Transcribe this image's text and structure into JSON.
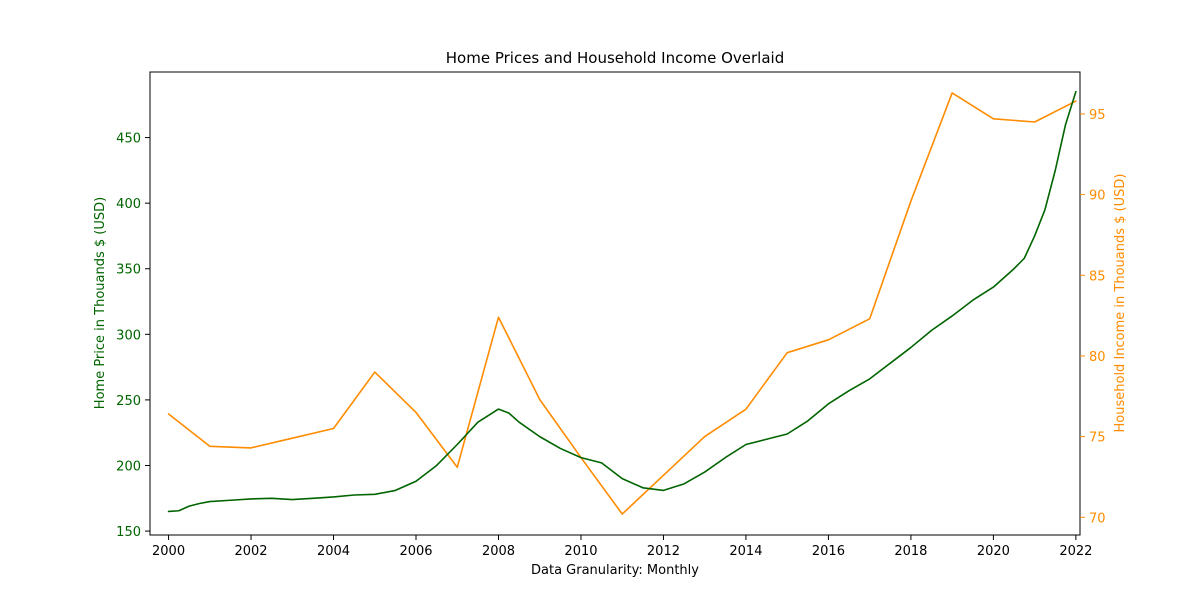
{
  "chart_data": {
    "type": "line",
    "title": "Home Prices and Household Income Overlaid",
    "xlabel": "Data Granularity: Monthly",
    "ylabel_left": "Home Price in Thouands $ (USD)",
    "ylabel_right": "Household Income in Thouands $ (USD)",
    "x_ticks": [
      "2000",
      "2002",
      "2004",
      "2006",
      "2008",
      "2010",
      "2012",
      "2014",
      "2016",
      "2018",
      "2020",
      "2022"
    ],
    "y_left_ticks": [
      "150",
      "200",
      "250",
      "300",
      "350",
      "400",
      "450"
    ],
    "y_right_ticks": [
      "70",
      "75",
      "80",
      "85",
      "90",
      "95"
    ],
    "xlim": [
      1999.55,
      2022.1
    ],
    "ylim_left": [
      147,
      500
    ],
    "ylim_right": [
      68.9,
      97.6
    ],
    "grid": false,
    "legend": false,
    "colors": {
      "home_price": "#006400",
      "income": "#ff8c00",
      "axis": "#000000"
    },
    "series": [
      {
        "key": "home_price",
        "axis": "left",
        "x": [
          2000.0,
          2000.25,
          2000.5,
          2000.75,
          2001.0,
          2001.5,
          2002.0,
          2002.5,
          2003.0,
          2003.5,
          2004.0,
          2004.5,
          2005.0,
          2005.5,
          2006.0,
          2006.5,
          2007.0,
          2007.5,
          2008.0,
          2008.25,
          2008.5,
          2009.0,
          2009.5,
          2010.0,
          2010.5,
          2011.0,
          2011.5,
          2012.0,
          2012.5,
          2013.0,
          2013.5,
          2014.0,
          2014.5,
          2015.0,
          2015.5,
          2016.0,
          2016.5,
          2017.0,
          2017.5,
          2018.0,
          2018.5,
          2019.0,
          2019.5,
          2020.0,
          2020.5,
          2020.75,
          2021.0,
          2021.25,
          2021.5,
          2021.75,
          2022.0
        ],
        "values": [
          165,
          165.5,
          169,
          171,
          172.5,
          173.5,
          174.5,
          175,
          174,
          175,
          176,
          177.5,
          178,
          181,
          188,
          200,
          216,
          233,
          243,
          240,
          233,
          222,
          213,
          206,
          202,
          190,
          183,
          181,
          186,
          195,
          206,
          216,
          220,
          224,
          234,
          247,
          257,
          266,
          278,
          290,
          303,
          314,
          326,
          336,
          350,
          358,
          375,
          395,
          425,
          460,
          485
        ]
      },
      {
        "key": "income",
        "axis": "right",
        "x": [
          2000,
          2001,
          2002,
          2003,
          2004,
          2005,
          2006,
          2007,
          2008,
          2009,
          2010,
          2011,
          2012,
          2013,
          2014,
          2015,
          2016,
          2017,
          2018,
          2019,
          2020,
          2021,
          2022
        ],
        "values": [
          76.4,
          74.4,
          74.3,
          74.9,
          75.5,
          79.0,
          76.5,
          73.1,
          82.4,
          77.3,
          73.7,
          70.2,
          72.6,
          75.0,
          76.7,
          80.2,
          81.0,
          82.3,
          89.6,
          96.3,
          94.7,
          94.5,
          95.8
        ]
      }
    ]
  }
}
